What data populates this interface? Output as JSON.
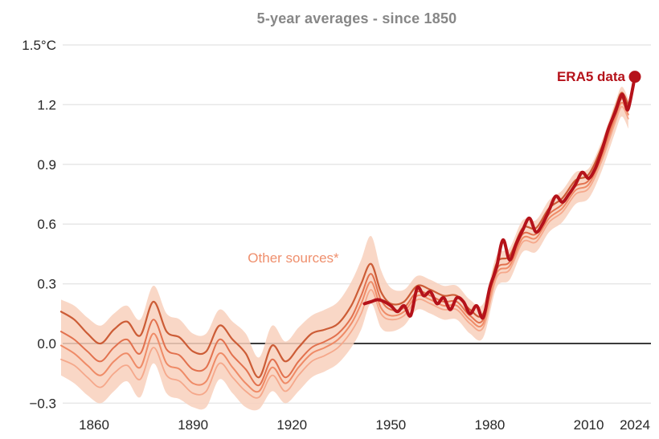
{
  "title": "5-year averages - since 1850",
  "labels": {
    "era5": "ERA5 data",
    "other_sources": "Other sources*"
  },
  "colors": {
    "era5_line": "#b5121a",
    "band_fill": "#f8d0bc",
    "other_lines": [
      "#cc5c36",
      "#e2714e",
      "#ef8b67",
      "#f5a88b"
    ],
    "title_text": "#878787",
    "tick_text": "#262626",
    "grid_line": "#e7e7e7",
    "zero_line": "#3b3b3b",
    "era5_label_text": "#b5121a",
    "other_label_text": "#ef8f6d"
  },
  "chart_data": {
    "type": "line",
    "title": "5-year averages - since 1850",
    "unit": "°C",
    "xlim": [
      1850,
      2024
    ],
    "ylim": [
      -0.33,
      1.5
    ],
    "grid": "horizontal gridlines at each 0.3, dark horizontal line at 0.0",
    "legend_position": "inline annotations",
    "x_ticks": [
      {
        "label": "1860",
        "value": 1860
      },
      {
        "label": "1890",
        "value": 1890
      },
      {
        "label": "1920",
        "value": 1920
      },
      {
        "label": "1950",
        "value": 1950
      },
      {
        "label": "1980",
        "value": 1980
      },
      {
        "label": "2010",
        "value": 2010
      },
      {
        "label": "2024",
        "value": 2024
      }
    ],
    "y_ticks": [
      {
        "label": "1.5°C",
        "value": 1.5
      },
      {
        "label": "1.2",
        "value": 1.2
      },
      {
        "label": "0.9",
        "value": 0.9
      },
      {
        "label": "0.6",
        "value": 0.6
      },
      {
        "label": "0.3",
        "value": 0.3
      },
      {
        "label": "0.0",
        "value": 0.0
      },
      {
        "label": "−0.3",
        "value": -0.3
      }
    ],
    "band": {
      "name": "Other sources uncertainty range",
      "years": [
        1850,
        1854,
        1858,
        1862,
        1866,
        1870,
        1874,
        1878,
        1882,
        1886,
        1890,
        1894,
        1898,
        1902,
        1906,
        1910,
        1914,
        1918,
        1922,
        1926,
        1930,
        1934,
        1938,
        1941,
        1944,
        1947,
        1950,
        1954,
        1958,
        1962,
        1966,
        1970,
        1974,
        1978,
        1982,
        1986,
        1990,
        1994,
        1998,
        2002,
        2006,
        2010,
        2014,
        2018,
        2020,
        2022
      ],
      "upper": [
        0.22,
        0.19,
        0.13,
        0.09,
        0.15,
        0.19,
        0.12,
        0.29,
        0.15,
        0.12,
        0.05,
        0.05,
        0.17,
        0.11,
        0.05,
        -0.07,
        0.09,
        0.01,
        0.08,
        0.14,
        0.17,
        0.21,
        0.31,
        0.42,
        0.54,
        0.37,
        0.28,
        0.27,
        0.34,
        0.32,
        0.29,
        0.29,
        0.22,
        0.2,
        0.44,
        0.48,
        0.62,
        0.62,
        0.72,
        0.77,
        0.86,
        0.88,
        1.02,
        1.21,
        1.29,
        1.23
      ],
      "lower": [
        -0.16,
        -0.2,
        -0.26,
        -0.3,
        -0.24,
        -0.19,
        -0.27,
        -0.1,
        -0.25,
        -0.28,
        -0.32,
        -0.32,
        -0.18,
        -0.25,
        -0.32,
        -0.33,
        -0.24,
        -0.3,
        -0.24,
        -0.17,
        -0.14,
        -0.1,
        -0.02,
        0.07,
        0.2,
        0.08,
        0.06,
        0.09,
        0.17,
        0.15,
        0.12,
        0.12,
        0.05,
        0.03,
        0.28,
        0.32,
        0.46,
        0.46,
        0.56,
        0.61,
        0.7,
        0.73,
        0.87,
        1.06,
        1.14,
        1.08
      ]
    },
    "series": [
      {
        "name": "Other sources line 1",
        "years": [
          1850,
          1854,
          1858,
          1862,
          1866,
          1870,
          1874,
          1878,
          1882,
          1886,
          1890,
          1894,
          1898,
          1902,
          1906,
          1910,
          1914,
          1918,
          1922,
          1926,
          1930,
          1934,
          1938,
          1941,
          1944,
          1947,
          1950,
          1954,
          1958,
          1962,
          1966,
          1970,
          1974,
          1978,
          1982,
          1986,
          1990,
          1994,
          1998,
          2002,
          2006,
          2010,
          2014,
          2018,
          2020,
          2022
        ],
        "values": [
          0.16,
          0.12,
          0.05,
          0.0,
          0.07,
          0.11,
          0.04,
          0.21,
          0.06,
          0.03,
          -0.04,
          -0.04,
          0.09,
          0.02,
          -0.05,
          -0.17,
          -0.01,
          -0.09,
          -0.02,
          0.05,
          0.07,
          0.1,
          0.19,
          0.3,
          0.4,
          0.26,
          0.2,
          0.21,
          0.29,
          0.27,
          0.24,
          0.24,
          0.17,
          0.15,
          0.4,
          0.44,
          0.58,
          0.58,
          0.68,
          0.73,
          0.82,
          0.85,
          0.99,
          1.18,
          1.26,
          1.2
        ]
      },
      {
        "name": "Other sources line 2",
        "years": [
          1850,
          1854,
          1858,
          1862,
          1866,
          1870,
          1874,
          1878,
          1882,
          1886,
          1890,
          1894,
          1898,
          1902,
          1906,
          1910,
          1914,
          1918,
          1922,
          1926,
          1930,
          1934,
          1938,
          1941,
          1944,
          1947,
          1950,
          1954,
          1958,
          1962,
          1966,
          1970,
          1974,
          1978,
          1982,
          1986,
          1990,
          1994,
          1998,
          2002,
          2006,
          2010,
          2014,
          2018,
          2020,
          2022
        ],
        "values": [
          0.06,
          0.02,
          -0.04,
          -0.09,
          -0.02,
          0.02,
          -0.05,
          0.12,
          -0.03,
          -0.06,
          -0.13,
          -0.12,
          0.02,
          -0.06,
          -0.13,
          -0.21,
          -0.08,
          -0.17,
          -0.09,
          -0.02,
          0.01,
          0.05,
          0.13,
          0.24,
          0.35,
          0.22,
          0.17,
          0.18,
          0.26,
          0.24,
          0.21,
          0.21,
          0.14,
          0.12,
          0.37,
          0.41,
          0.55,
          0.55,
          0.65,
          0.7,
          0.79,
          0.82,
          0.96,
          1.15,
          1.23,
          1.17
        ]
      },
      {
        "name": "Other sources line 3",
        "years": [
          1850,
          1854,
          1858,
          1862,
          1866,
          1870,
          1874,
          1878,
          1882,
          1886,
          1890,
          1894,
          1898,
          1902,
          1906,
          1910,
          1914,
          1918,
          1922,
          1926,
          1930,
          1934,
          1938,
          1941,
          1944,
          1947,
          1950,
          1954,
          1958,
          1962,
          1966,
          1970,
          1974,
          1978,
          1982,
          1986,
          1990,
          1994,
          1998,
          2002,
          2006,
          2010,
          2014,
          2018,
          2020,
          2022
        ],
        "values": [
          -0.01,
          -0.05,
          -0.11,
          -0.16,
          -0.09,
          -0.05,
          -0.12,
          0.05,
          -0.1,
          -0.13,
          -0.2,
          -0.19,
          -0.05,
          -0.12,
          -0.2,
          -0.24,
          -0.12,
          -0.2,
          -0.12,
          -0.05,
          -0.02,
          0.02,
          0.1,
          0.2,
          0.31,
          0.18,
          0.14,
          0.16,
          0.24,
          0.22,
          0.19,
          0.19,
          0.12,
          0.1,
          0.35,
          0.39,
          0.53,
          0.53,
          0.63,
          0.68,
          0.77,
          0.8,
          0.94,
          1.13,
          1.21,
          1.15
        ]
      },
      {
        "name": "Other sources line 4",
        "years": [
          1850,
          1854,
          1858,
          1862,
          1866,
          1870,
          1874,
          1878,
          1882,
          1886,
          1890,
          1894,
          1898,
          1902,
          1906,
          1910,
          1914,
          1918,
          1922,
          1926,
          1930,
          1934,
          1938,
          1941,
          1944,
          1947,
          1950,
          1954,
          1958,
          1962,
          1966,
          1970,
          1974,
          1978,
          1982,
          1986,
          1990,
          1994,
          1998,
          2002,
          2006,
          2010,
          2014,
          2018,
          2020,
          2022
        ],
        "values": [
          -0.08,
          -0.11,
          -0.17,
          -0.22,
          -0.15,
          -0.11,
          -0.18,
          -0.02,
          -0.16,
          -0.19,
          -0.25,
          -0.24,
          -0.1,
          -0.17,
          -0.24,
          -0.27,
          -0.16,
          -0.24,
          -0.16,
          -0.09,
          -0.06,
          -0.02,
          0.06,
          0.15,
          0.27,
          0.15,
          0.12,
          0.14,
          0.22,
          0.2,
          0.17,
          0.17,
          0.1,
          0.08,
          0.33,
          0.37,
          0.51,
          0.51,
          0.61,
          0.66,
          0.75,
          0.78,
          0.92,
          1.11,
          1.19,
          1.13
        ]
      },
      {
        "name": "ERA5 data",
        "years": [
          1942,
          1944,
          1946,
          1948,
          1950,
          1952,
          1954,
          1956,
          1958,
          1960,
          1962,
          1964,
          1966,
          1968,
          1970,
          1972,
          1974,
          1976,
          1978,
          1980,
          1982,
          1984,
          1986,
          1988,
          1990,
          1992,
          1994,
          1996,
          1998,
          2000,
          2002,
          2004,
          2006,
          2008,
          2010,
          2012,
          2014,
          2016,
          2018,
          2020,
          2021,
          2022,
          2024
        ],
        "values": [
          0.2,
          0.21,
          0.22,
          0.21,
          0.19,
          0.16,
          0.19,
          0.14,
          0.28,
          0.24,
          0.26,
          0.2,
          0.23,
          0.17,
          0.23,
          0.21,
          0.15,
          0.19,
          0.13,
          0.28,
          0.38,
          0.52,
          0.42,
          0.5,
          0.57,
          0.63,
          0.56,
          0.6,
          0.67,
          0.74,
          0.71,
          0.75,
          0.8,
          0.86,
          0.83,
          0.88,
          0.97,
          1.08,
          1.16,
          1.25,
          1.21,
          1.18,
          1.34
        ],
        "endpoint_marker": {
          "year": 2024,
          "value": 1.34
        }
      }
    ]
  }
}
